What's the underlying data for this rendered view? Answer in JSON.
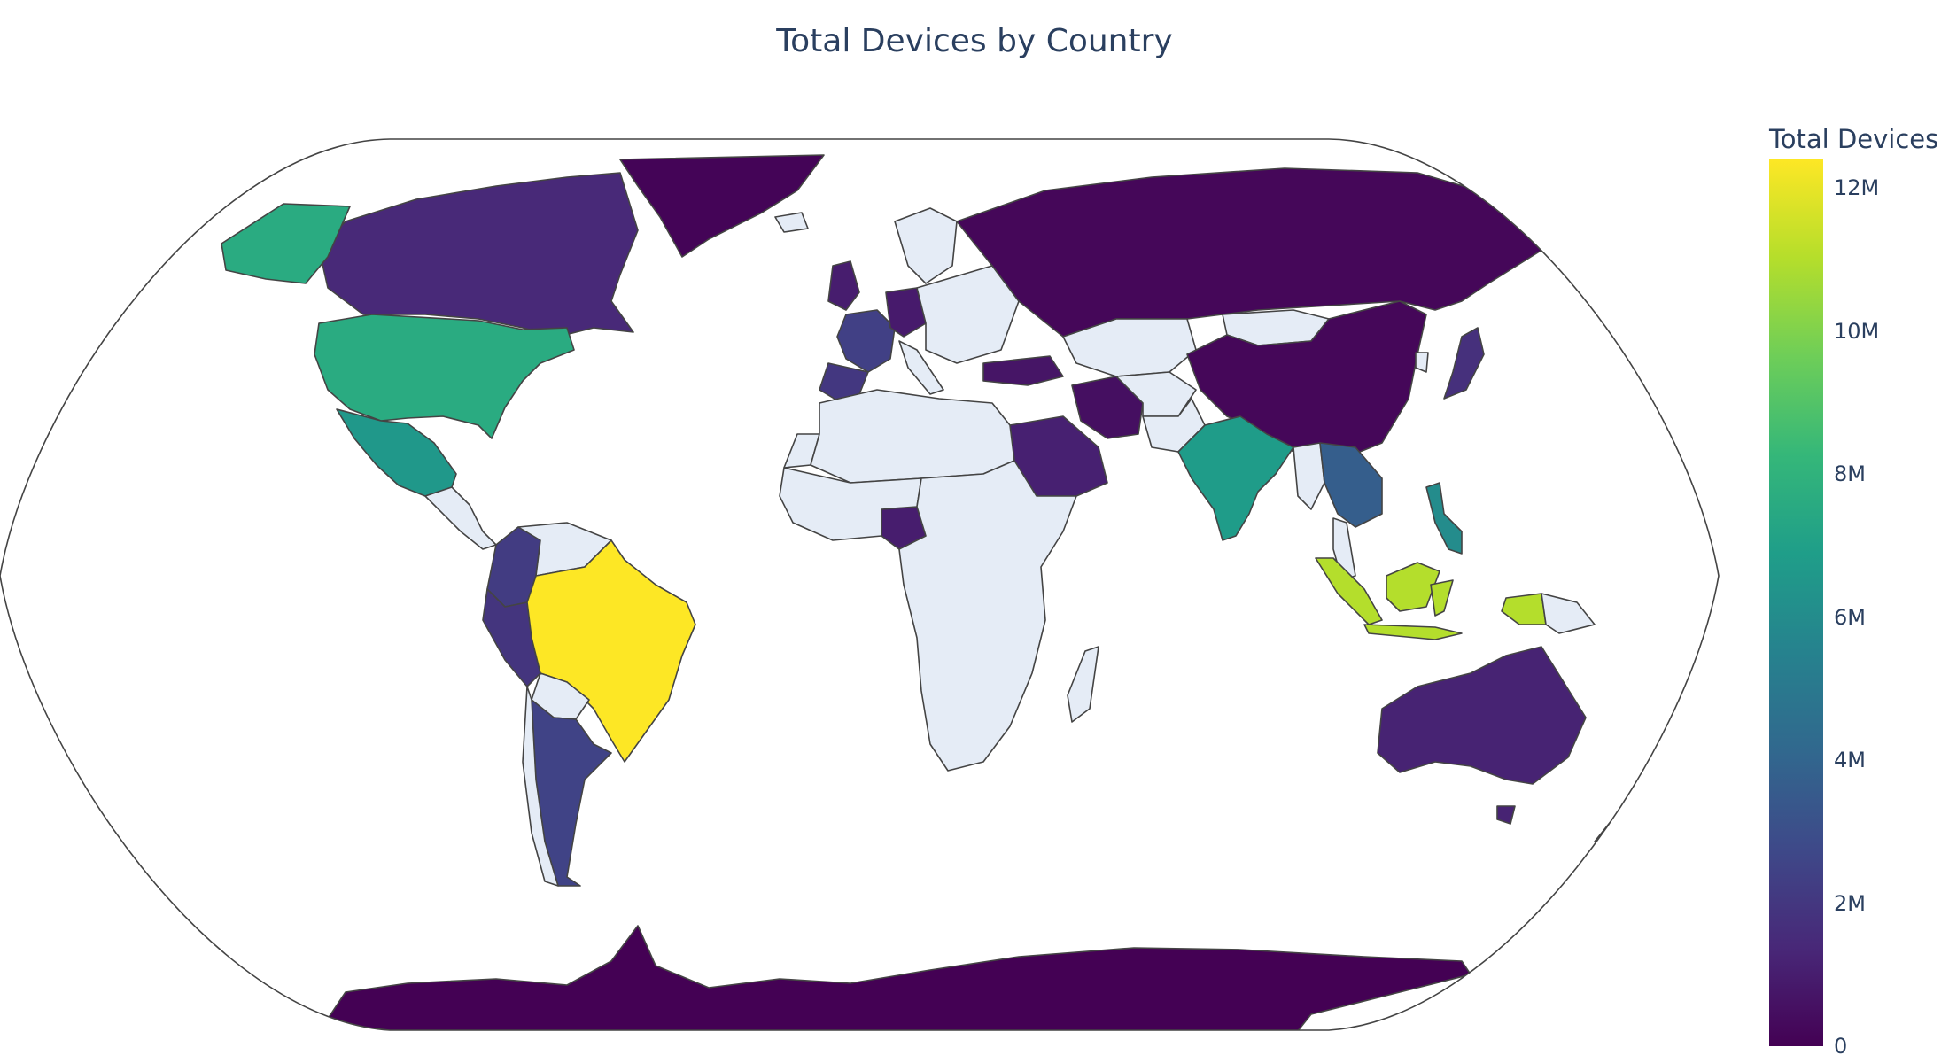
{
  "chart_data": {
    "type": "choropleth",
    "title": "Total Devices by Country",
    "projection": "natural earth",
    "colorbar": {
      "title": "Total Devices",
      "colorscale": "Viridis",
      "range": [
        0,
        12400000
      ],
      "ticks": [
        {
          "value": 0,
          "label": "0"
        },
        {
          "value": 2000000,
          "label": "2M"
        },
        {
          "value": 4000000,
          "label": "4M"
        },
        {
          "value": 6000000,
          "label": "6M"
        },
        {
          "value": 8000000,
          "label": "8M"
        },
        {
          "value": 10000000,
          "label": "10M"
        },
        {
          "value": 12000000,
          "label": "12M"
        }
      ]
    },
    "colors": {
      "viridis": [
        "#440154",
        "#482878",
        "#3e4989",
        "#31688e",
        "#26828e",
        "#1f9e89",
        "#35b779",
        "#6ece58",
        "#b5de2b",
        "#fde725"
      ],
      "nodata": "#e5ecf6",
      "border": "#444444",
      "frame": "#444444",
      "text": "#2a3f5f"
    },
    "countries": [
      {
        "name": "Brazil",
        "value": 12400000
      },
      {
        "name": "Indonesia",
        "value": 11000000
      },
      {
        "name": "United States",
        "value": 7600000
      },
      {
        "name": "India",
        "value": 6800000
      },
      {
        "name": "Mexico",
        "value": 6600000
      },
      {
        "name": "Philippines",
        "value": 6000000
      },
      {
        "name": "Thailand",
        "value": 3700000
      },
      {
        "name": "Argentina",
        "value": 2500000
      },
      {
        "name": "France",
        "value": 2400000
      },
      {
        "name": "Colombia",
        "value": 2200000
      },
      {
        "name": "Spain",
        "value": 2000000
      },
      {
        "name": "Peru",
        "value": 1900000
      },
      {
        "name": "Japan",
        "value": 1700000
      },
      {
        "name": "Canada",
        "value": 1400000
      },
      {
        "name": "Australia",
        "value": 1200000
      },
      {
        "name": "Saudi Arabia",
        "value": 1100000
      },
      {
        "name": "Nigeria",
        "value": 1000000
      },
      {
        "name": "United Kingdom",
        "value": 1000000
      },
      {
        "name": "Germany",
        "value": 900000
      },
      {
        "name": "Turkey",
        "value": 700000
      },
      {
        "name": "Iran",
        "value": 500000
      },
      {
        "name": "Russia",
        "value": 200000
      },
      {
        "name": "China",
        "value": 200000
      },
      {
        "name": "Greenland",
        "value": 100000
      },
      {
        "name": "Antarctica",
        "value": 0
      }
    ]
  }
}
